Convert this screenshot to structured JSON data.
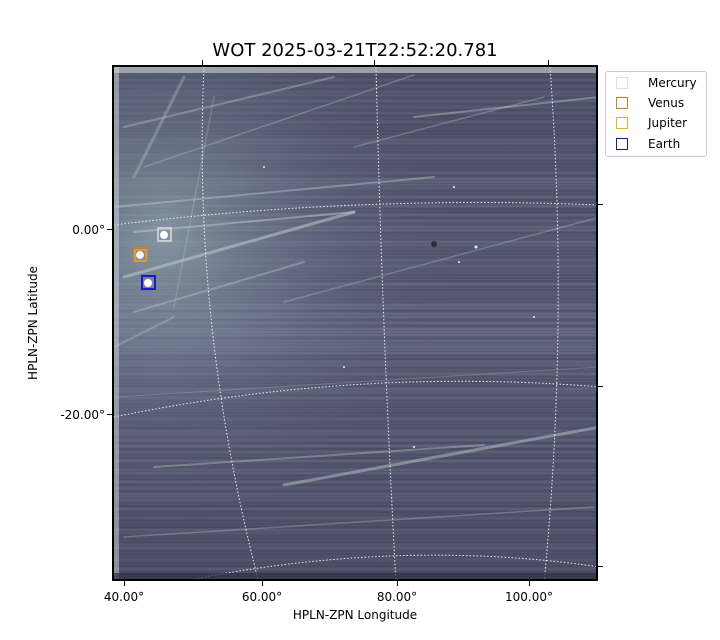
{
  "title": "WOT 2025-03-21T22:52:20.781",
  "xlabel": "HPLN-ZPN Longitude",
  "ylabel": "HPLN-ZPN Latitude",
  "xticks": [
    "40.00°",
    "60.00°",
    "80.00°",
    "100.00°"
  ],
  "yticks": [
    "0.00°",
    "-20.00°"
  ],
  "legend": [
    {
      "label": "Mercury",
      "color": "#dddddd"
    },
    {
      "label": "Venus",
      "color": "#e07b27"
    },
    {
      "label": "Jupiter",
      "color": "#e5b127"
    },
    {
      "label": "Earth",
      "color": "#1a1a8c"
    }
  ],
  "colors": {
    "background": "#5b5e78",
    "streak": "#b8cccc",
    "grid": "#ffffff"
  }
}
